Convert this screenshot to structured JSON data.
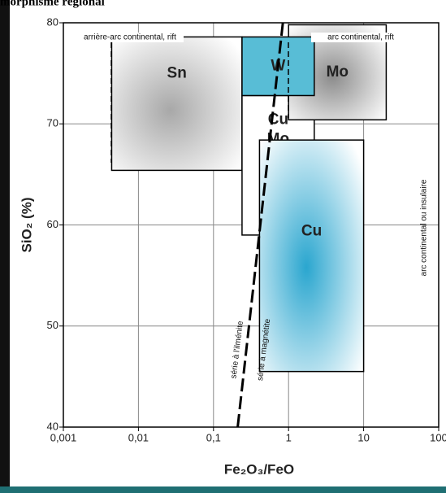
{
  "chart_data": {
    "type": "region",
    "title": "morphisme régional",
    "xlabel": "Fe₂O₃/FeO",
    "ylabel": "SiO₂ (%)",
    "xscale": "log",
    "xlim": [
      0.001,
      100
    ],
    "ylim": [
      40,
      80
    ],
    "xticks": [
      {
        "value": 0.001,
        "label": "0,001"
      },
      {
        "value": 0.01,
        "label": "0,01"
      },
      {
        "value": 0.1,
        "label": "0,1"
      },
      1,
      10,
      100
    ],
    "yticks": [
      40,
      50,
      60,
      70,
      80
    ],
    "grid": true,
    "regions": [
      {
        "labels": [
          "Sn"
        ],
        "x": [
          0.0044,
          0.24
        ],
        "y": [
          65.4,
          78.6
        ],
        "color": "#a8a8a8",
        "style": "gradient"
      },
      {
        "labels": [
          "Cu",
          "Mo"
        ],
        "x": [
          0.24,
          2.2
        ],
        "y": [
          59,
          72.8
        ],
        "color": "#ffffff",
        "style": "solid"
      },
      {
        "labels": [
          "Cu"
        ],
        "x": [
          0.41,
          10
        ],
        "y": [
          45.5,
          68.4
        ],
        "color": "#2aa6cf",
        "style": "gradient"
      },
      {
        "labels": [
          "Mo"
        ],
        "x": [
          1,
          20
        ],
        "y": [
          70.4,
          79.8
        ],
        "color": "#8c8c8c",
        "style": "gradient"
      },
      {
        "labels": [
          "W"
        ],
        "x": [
          0.24,
          2.2
        ],
        "y": [
          72.8,
          78.6
        ],
        "color": "#58bdd6",
        "style": "solid"
      }
    ],
    "boundary": {
      "x": [
        0.84,
        0.21
      ],
      "y": [
        80,
        40
      ]
    },
    "annotations": [
      "arrière-arc continental, rift",
      "arc continental, rift",
      "arc continental ou insulaire",
      "série à l'ilménite",
      "série à magnétite"
    ]
  }
}
